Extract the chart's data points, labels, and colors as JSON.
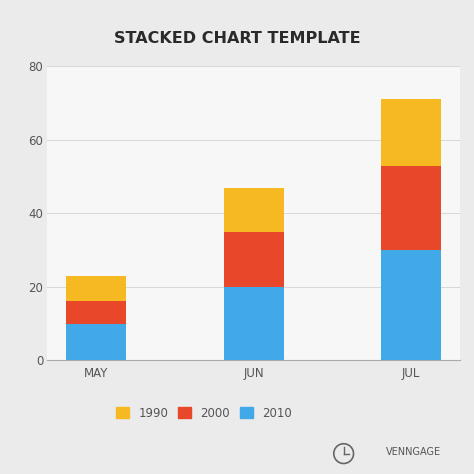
{
  "title": "STACKED CHART TEMPLATE",
  "categories": [
    "MAY",
    "JUN",
    "JUL"
  ],
  "series": {
    "2010": [
      10,
      20,
      30
    ],
    "2000": [
      6,
      15,
      23
    ],
    "1990": [
      7,
      12,
      18
    ]
  },
  "colors": {
    "2010": "#42a9e8",
    "2000": "#e8472a",
    "1990": "#f6b921"
  },
  "ylim": [
    0,
    80
  ],
  "yticks": [
    0,
    20,
    40,
    60,
    80
  ],
  "outer_bg": "#ebebeb",
  "plot_bg": "#f7f7f7",
  "title_fontsize": 11.5,
  "tick_fontsize": 8.5,
  "legend_fontsize": 8.5,
  "bar_width": 0.38,
  "title_color": "#2a2a2a",
  "tick_color": "#555555",
  "grid_color": "#d8d8d8",
  "venngage_text": "VENNGAGE"
}
